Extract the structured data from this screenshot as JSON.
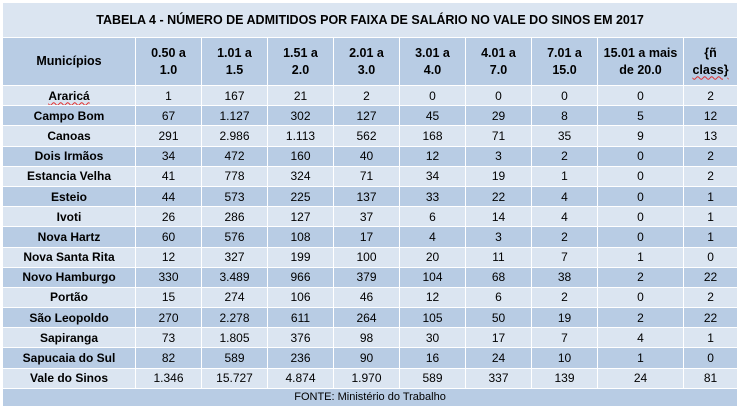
{
  "title": "TABELA 4 - NÚMERO DE ADMITIDOS POR FAIXA DE SALÁRIO NO VALE DO SINOS EM 2017",
  "columns": [
    {
      "line1": "Municípios",
      "line2": ""
    },
    {
      "line1": "0.50 a",
      "line2": "1.0"
    },
    {
      "line1": "1.01 a",
      "line2": "1.5"
    },
    {
      "line1": "1.51 a",
      "line2": "2.0"
    },
    {
      "line1": "2.01 a",
      "line2": "3.0"
    },
    {
      "line1": "3.01 a",
      "line2": "4.0"
    },
    {
      "line1": "4.01 a",
      "line2": "7.0"
    },
    {
      "line1": "7.01 a",
      "line2": "15.0"
    },
    {
      "line1": "15.01 a mais",
      "line2": "de 20.0"
    },
    {
      "line1": "{ñ",
      "line2": "class}"
    }
  ],
  "rows": [
    [
      "Araricá",
      "1",
      "167",
      "21",
      "2",
      "0",
      "0",
      "0",
      "0",
      "2"
    ],
    [
      "Campo Bom",
      "67",
      "1.127",
      "302",
      "127",
      "45",
      "29",
      "8",
      "5",
      "12"
    ],
    [
      "Canoas",
      "291",
      "2.986",
      "1.113",
      "562",
      "168",
      "71",
      "35",
      "9",
      "13"
    ],
    [
      "Dois Irmãos",
      "34",
      "472",
      "160",
      "40",
      "12",
      "3",
      "2",
      "0",
      "2"
    ],
    [
      "Estancia Velha",
      "41",
      "778",
      "324",
      "71",
      "34",
      "19",
      "1",
      "0",
      "2"
    ],
    [
      "Esteio",
      "44",
      "573",
      "225",
      "137",
      "33",
      "22",
      "4",
      "0",
      "1"
    ],
    [
      "Ivoti",
      "26",
      "286",
      "127",
      "37",
      "6",
      "14",
      "4",
      "0",
      "1"
    ],
    [
      "Nova Hartz",
      "60",
      "576",
      "108",
      "17",
      "4",
      "3",
      "2",
      "0",
      "1"
    ],
    [
      "Nova Santa Rita",
      "12",
      "327",
      "199",
      "100",
      "20",
      "11",
      "7",
      "1",
      "0"
    ],
    [
      "Novo Hamburgo",
      "330",
      "3.489",
      "966",
      "379",
      "104",
      "68",
      "38",
      "2",
      "22"
    ],
    [
      "Portão",
      "15",
      "274",
      "106",
      "46",
      "12",
      "6",
      "2",
      "0",
      "2"
    ],
    [
      "São Leopoldo",
      "270",
      "2.278",
      "611",
      "264",
      "105",
      "50",
      "19",
      "2",
      "22"
    ],
    [
      "Sapiranga",
      "73",
      "1.805",
      "376",
      "98",
      "30",
      "17",
      "7",
      "4",
      "1"
    ],
    [
      "Sapucaia do Sul",
      "82",
      "589",
      "236",
      "90",
      "16",
      "24",
      "10",
      "1",
      "0"
    ]
  ],
  "total": [
    "Vale do Sinos",
    "1.346",
    "15.727",
    "4.874",
    "1.970",
    "589",
    "337",
    "139",
    "24",
    "81"
  ],
  "footer": "FONTE: Ministério do Trabalho",
  "colors": {
    "light_band": "#dbe5f1",
    "dark_band": "#b8cce4"
  }
}
